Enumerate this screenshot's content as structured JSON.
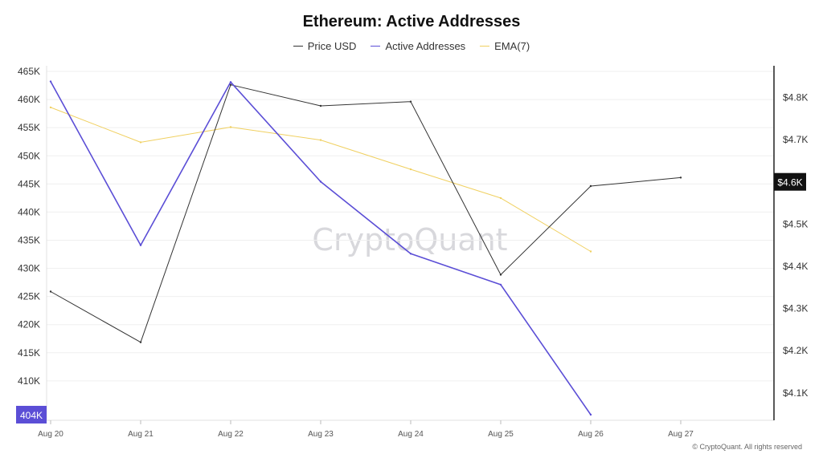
{
  "chart_data": {
    "type": "line",
    "title": "Ethereum: Active Addresses",
    "categories": [
      "Aug 20",
      "Aug 21",
      "Aug 22",
      "Aug 23",
      "Aug 24",
      "Aug 25",
      "Aug 26",
      "Aug 27"
    ],
    "series": [
      {
        "name": "Price USD",
        "axis": "right",
        "color": "#333333",
        "values": [
          4.34,
          4.22,
          4.83,
          4.78,
          4.79,
          4.38,
          4.59,
          4.61
        ]
      },
      {
        "name": "Active Addresses",
        "axis": "left",
        "color": "#5b4ed6",
        "values": [
          463.2,
          434.1,
          463.1,
          445.4,
          432.6,
          427.1,
          404.0,
          null
        ]
      },
      {
        "name": "EMA(7)",
        "axis": "left",
        "color": "#f0d060",
        "values": [
          458.6,
          452.4,
          455.1,
          452.8,
          447.6,
          442.5,
          433.0,
          null
        ]
      }
    ],
    "left_axis": {
      "ylim": [
        403,
        466
      ],
      "ticks": [
        410,
        415,
        420,
        425,
        430,
        435,
        440,
        445,
        450,
        455,
        460,
        465
      ],
      "tick_labels": [
        "410K",
        "415K",
        "420K",
        "425K",
        "430K",
        "435K",
        "440K",
        "445K",
        "450K",
        "455K",
        "460K",
        "465K"
      ]
    },
    "right_axis": {
      "ylim": [
        4.035,
        4.875
      ],
      "ticks": [
        4.1,
        4.2,
        4.3,
        4.4,
        4.5,
        4.7,
        4.8
      ],
      "tick_labels": [
        "$4.1K",
        "$4.2K",
        "$4.3K",
        "$4.4K",
        "$4.5K",
        "$4.7K",
        "$4.8K"
      ]
    },
    "current_badges": {
      "left": {
        "label": "404K",
        "value": 404.0,
        "color": "#5b4ed6"
      },
      "right": {
        "label": "$4.6K",
        "value": 4.6,
        "color": "#111111"
      }
    },
    "watermark": "CryptoQuant",
    "grid": true
  },
  "legend": [
    {
      "label": "Price USD",
      "color": "#333333"
    },
    {
      "label": "Active Addresses",
      "color": "#5b4ed6"
    },
    {
      "label": "EMA(7)",
      "color": "#f0d060"
    }
  ],
  "footer": "© CryptoQuant. All rights reserved"
}
